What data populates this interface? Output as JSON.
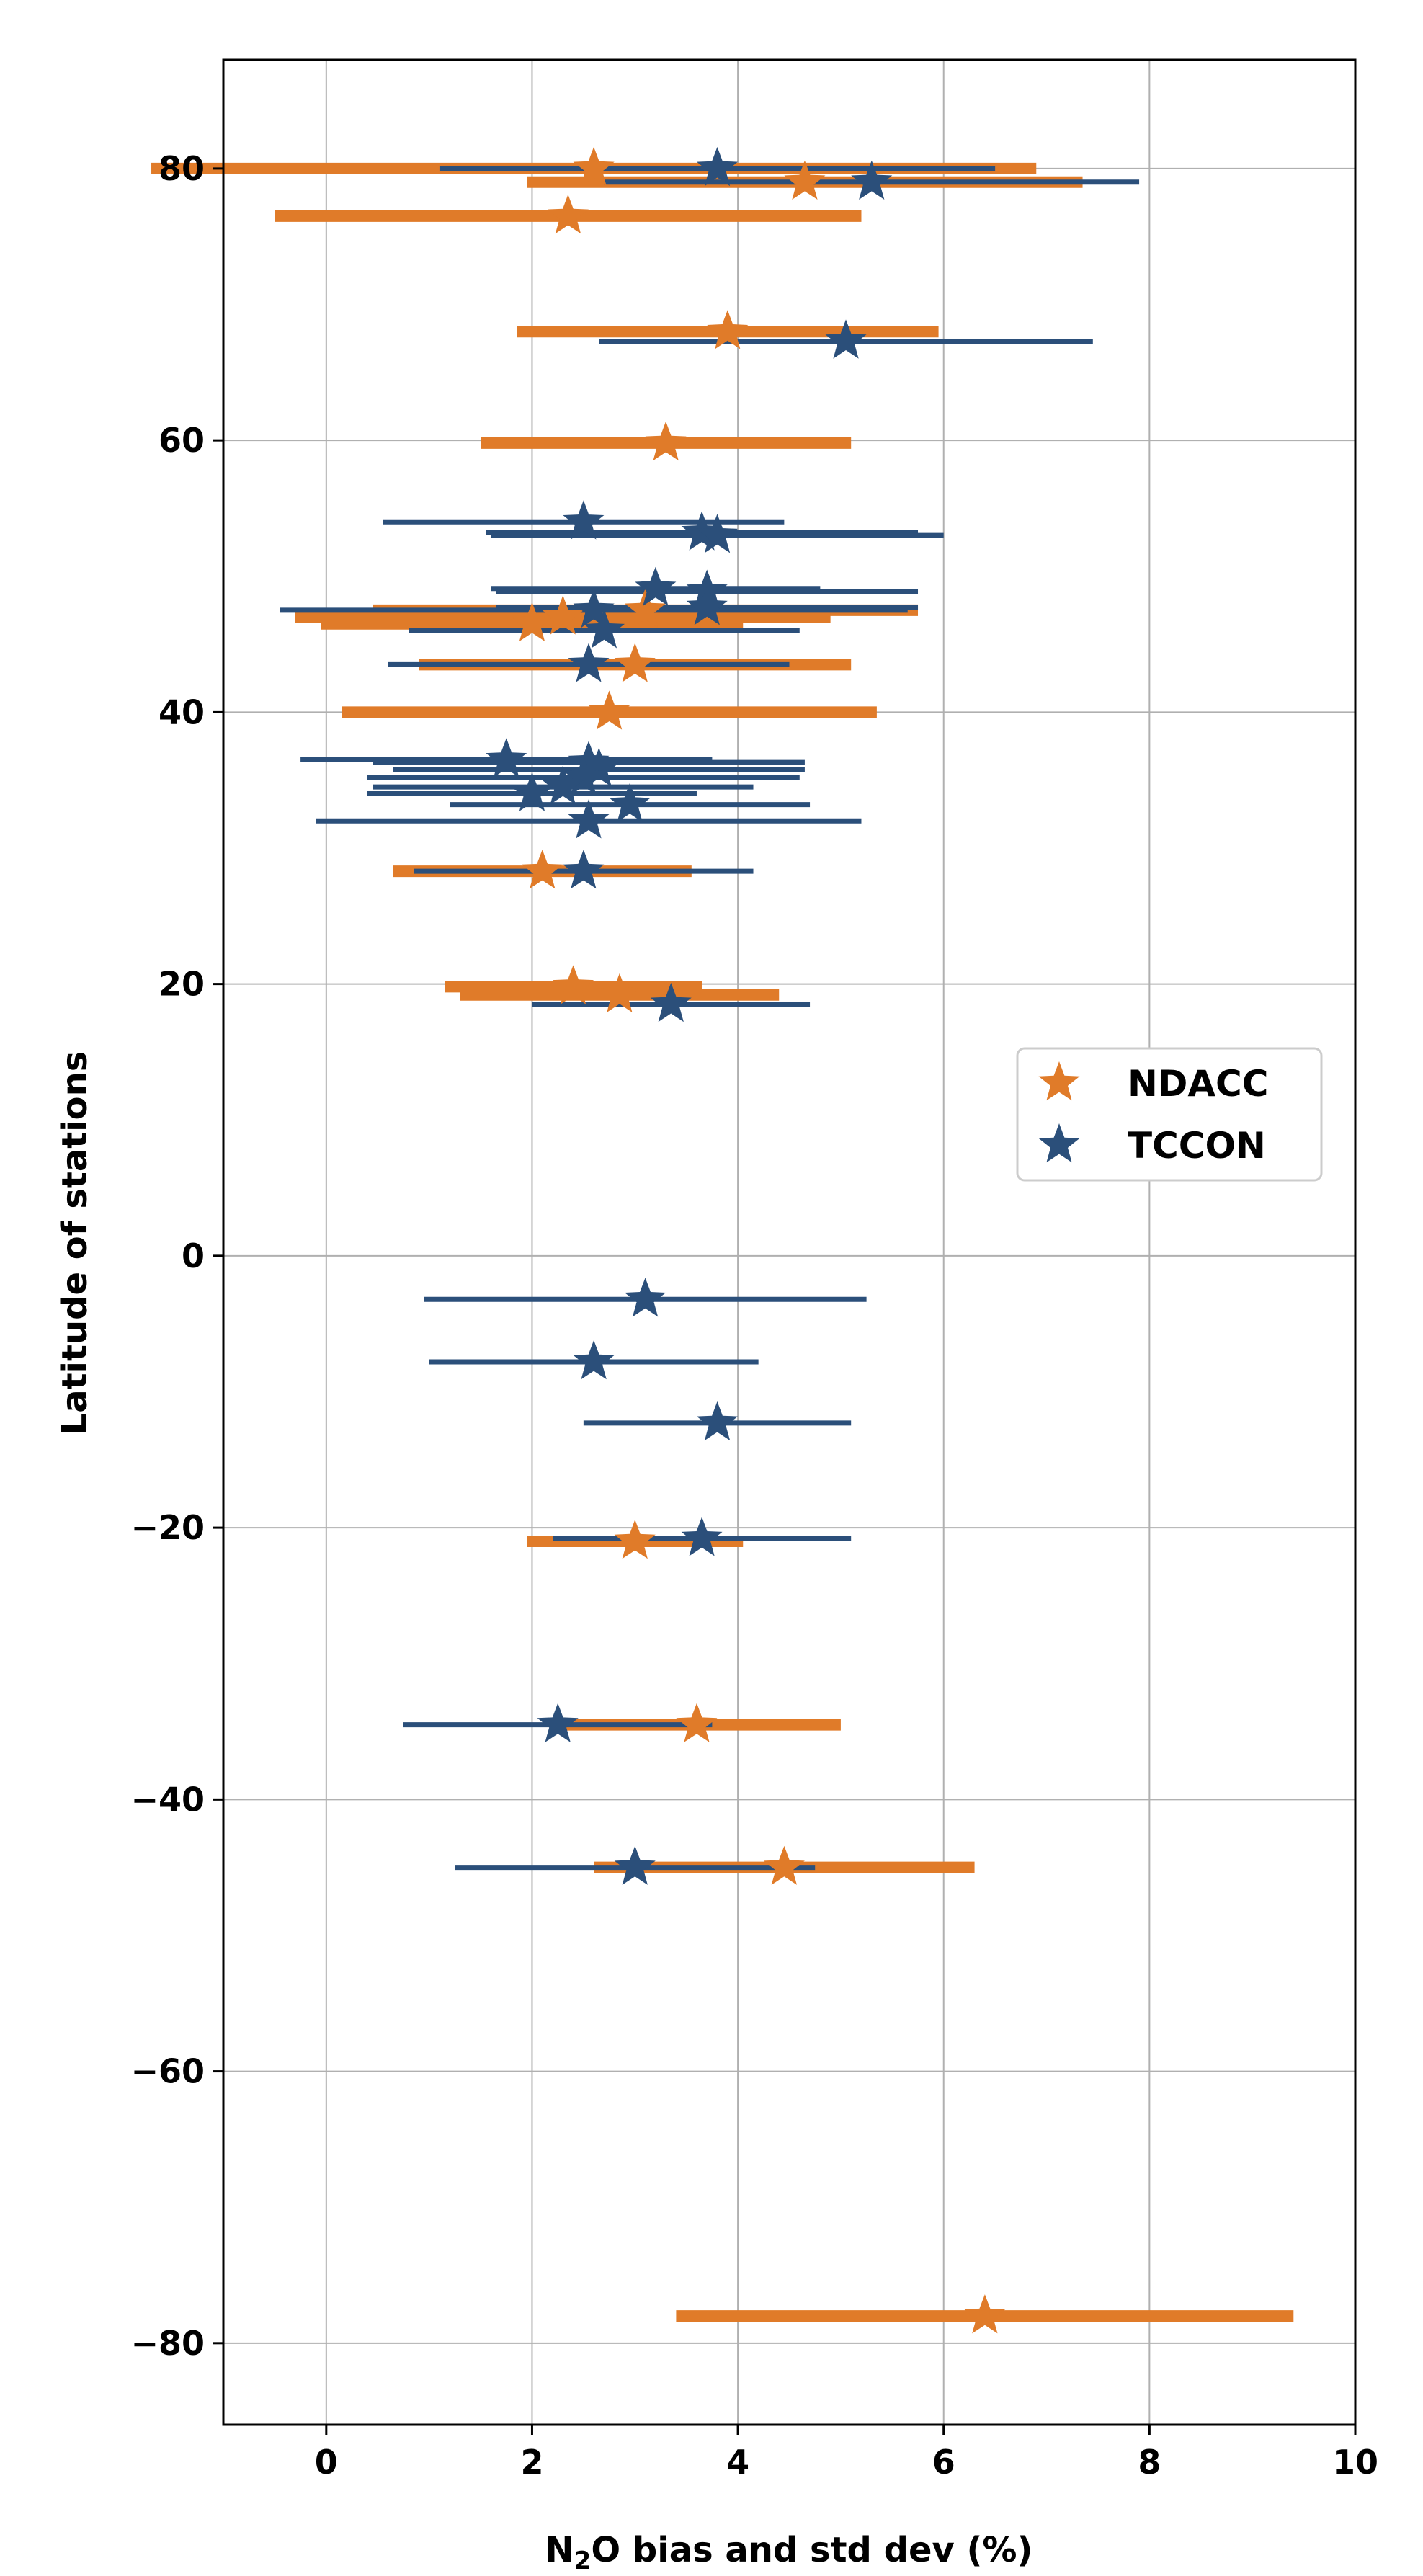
{
  "chart_data": {
    "type": "scatter",
    "xlabel_prefix": "N",
    "xlabel_sub": "2",
    "xlabel_suffix": "O bias and std dev (%)",
    "ylabel": "Latitude of stations",
    "xlim": [
      -1,
      10
    ],
    "ylim": [
      -86,
      88
    ],
    "xticks": [
      0,
      2,
      4,
      6,
      8,
      10
    ],
    "yticks": [
      -80,
      -60,
      -40,
      -20,
      0,
      20,
      40,
      60,
      80
    ],
    "xtick_labels": [
      "0",
      "2",
      "4",
      "6",
      "8",
      "10"
    ],
    "ytick_labels": [
      "−80",
      "−60",
      "−40",
      "−20",
      "0",
      "20",
      "40",
      "60",
      "80"
    ],
    "grid": true,
    "legend": {
      "position": "center-right",
      "entries": [
        {
          "label": "NDACC",
          "color": "#e07b29"
        },
        {
          "label": "TCCON",
          "color": "#2b4f7a"
        }
      ]
    },
    "series": [
      {
        "name": "NDACC",
        "color": "#e07b29",
        "marker": "star",
        "points": [
          {
            "lat": 80.0,
            "bias": 2.6,
            "std": 4.3
          },
          {
            "lat": 79.0,
            "bias": 4.65,
            "std": 2.7
          },
          {
            "lat": 76.5,
            "bias": 2.35,
            "std": 2.85
          },
          {
            "lat": 68.0,
            "bias": 3.9,
            "std": 2.05
          },
          {
            "lat": 59.8,
            "bias": 3.3,
            "std": 1.8
          },
          {
            "lat": 47.5,
            "bias": 3.1,
            "std": 2.65
          },
          {
            "lat": 47.0,
            "bias": 2.3,
            "std": 2.6
          },
          {
            "lat": 46.5,
            "bias": 2.0,
            "std": 2.05
          },
          {
            "lat": 43.5,
            "bias": 3.0,
            "std": 2.1
          },
          {
            "lat": 40.0,
            "bias": 2.75,
            "std": 2.6
          },
          {
            "lat": 28.3,
            "bias": 2.1,
            "std": 1.45
          },
          {
            "lat": 19.8,
            "bias": 2.4,
            "std": 1.25
          },
          {
            "lat": 19.2,
            "bias": 2.85,
            "std": 1.55
          },
          {
            "lat": -21.0,
            "bias": 3.0,
            "std": 1.05
          },
          {
            "lat": -34.5,
            "bias": 3.6,
            "std": 1.4
          },
          {
            "lat": -45.0,
            "bias": 4.45,
            "std": 1.85
          },
          {
            "lat": -78.0,
            "bias": 6.4,
            "std": 3.0
          }
        ]
      },
      {
        "name": "TCCON",
        "color": "#2b4f7a",
        "marker": "star",
        "points": [
          {
            "lat": 80.0,
            "bias": 3.8,
            "std": 2.7
          },
          {
            "lat": 79.0,
            "bias": 5.3,
            "std": 2.6
          },
          {
            "lat": 67.3,
            "bias": 5.05,
            "std": 2.4
          },
          {
            "lat": 54.0,
            "bias": 2.5,
            "std": 1.95
          },
          {
            "lat": 53.2,
            "bias": 3.65,
            "std": 2.1
          },
          {
            "lat": 53.0,
            "bias": 3.8,
            "std": 2.2
          },
          {
            "lat": 49.1,
            "bias": 3.2,
            "std": 1.6
          },
          {
            "lat": 48.9,
            "bias": 3.7,
            "std": 2.05
          },
          {
            "lat": 47.7,
            "bias": 3.7,
            "std": 2.05
          },
          {
            "lat": 47.5,
            "bias": 2.6,
            "std": 3.05
          },
          {
            "lat": 46.0,
            "bias": 2.7,
            "std": 1.9
          },
          {
            "lat": 43.5,
            "bias": 2.55,
            "std": 1.95
          },
          {
            "lat": 36.5,
            "bias": 1.75,
            "std": 2.0
          },
          {
            "lat": 36.3,
            "bias": 2.55,
            "std": 2.1
          },
          {
            "lat": 35.8,
            "bias": 2.65,
            "std": 2.0
          },
          {
            "lat": 35.2,
            "bias": 2.5,
            "std": 2.1
          },
          {
            "lat": 34.5,
            "bias": 2.3,
            "std": 1.85
          },
          {
            "lat": 34.0,
            "bias": 2.0,
            "std": 1.6
          },
          {
            "lat": 33.2,
            "bias": 2.95,
            "std": 1.75
          },
          {
            "lat": 32.0,
            "bias": 2.55,
            "std": 2.65
          },
          {
            "lat": 28.3,
            "bias": 2.5,
            "std": 1.65
          },
          {
            "lat": 18.5,
            "bias": 3.35,
            "std": 1.35
          },
          {
            "lat": -3.2,
            "bias": 3.1,
            "std": 2.15
          },
          {
            "lat": -7.8,
            "bias": 2.6,
            "std": 1.6
          },
          {
            "lat": -12.3,
            "bias": 3.8,
            "std": 1.3
          },
          {
            "lat": -20.8,
            "bias": 3.65,
            "std": 1.45
          },
          {
            "lat": -34.5,
            "bias": 2.25,
            "std": 1.5
          },
          {
            "lat": -45.0,
            "bias": 3.0,
            "std": 1.75
          }
        ]
      }
    ]
  }
}
